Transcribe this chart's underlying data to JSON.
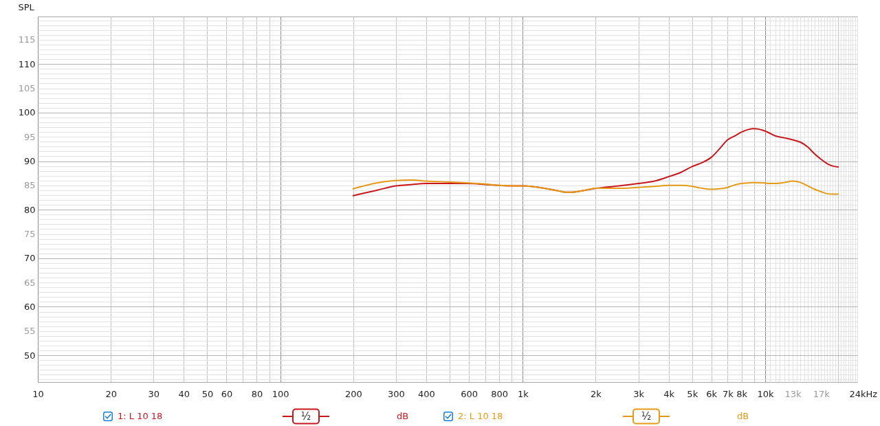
{
  "chart_data": {
    "type": "line",
    "ylabel": "SPL",
    "xlabel": "Hz",
    "log": "x",
    "grid": true,
    "legend": "bottom",
    "xlim": [
      10,
      24000
    ],
    "ylim": [
      44.5,
      119.8
    ],
    "xticks": [
      10,
      20,
      30,
      40,
      50,
      60,
      {
        "value": 70,
        "label": null
      },
      80,
      {
        "value": 90,
        "label": null
      },
      100,
      200,
      300,
      400,
      {
        "value": 500,
        "label": null
      },
      600,
      {
        "value": 700,
        "label": null
      },
      800,
      {
        "value": 900,
        "label": null
      },
      {
        "value": 1000,
        "label": "1k"
      },
      {
        "value": 2000,
        "label": "2k"
      },
      {
        "value": 3000,
        "label": "3k"
      },
      {
        "value": 4000,
        "label": "4k"
      },
      {
        "value": 5000,
        "label": "5k"
      },
      {
        "value": 6000,
        "label": "6k"
      },
      {
        "value": 7000,
        "label": "7k"
      },
      {
        "value": 8000,
        "label": "8k"
      },
      {
        "value": 9000,
        "label": null
      },
      {
        "value": 10000,
        "label": "10k"
      },
      {
        "value": 10500,
        "label": null
      },
      {
        "value": 11000,
        "label": null
      },
      {
        "value": 11500,
        "label": null
      },
      {
        "value": 12000,
        "label": null
      },
      {
        "value": 12500,
        "label": null
      },
      {
        "value": 13000,
        "label": "13k"
      },
      {
        "value": 13500,
        "label": null
      },
      {
        "value": 14000,
        "label": null
      },
      {
        "value": 14500,
        "label": null
      },
      {
        "value": 15000,
        "label": null
      },
      {
        "value": 15500,
        "label": null
      },
      {
        "value": 16000,
        "label": null
      },
      {
        "value": 16500,
        "label": null
      },
      {
        "value": 17000,
        "label": "17k"
      },
      {
        "value": 17500,
        "label": null
      },
      {
        "value": 18000,
        "label": null
      },
      {
        "value": 18500,
        "label": null
      },
      {
        "value": 19000,
        "label": null
      },
      {
        "value": 19500,
        "label": null
      },
      {
        "value": 20000,
        "label": null
      },
      {
        "value": 20500,
        "label": null
      },
      {
        "value": 21000,
        "label": null
      },
      {
        "value": 21500,
        "label": null
      },
      {
        "value": 22000,
        "label": null
      },
      {
        "value": 22500,
        "label": null
      },
      {
        "value": 23000,
        "label": null
      },
      {
        "value": 23500,
        "label": null
      },
      {
        "value": 24000,
        "label": "24k"
      }
    ],
    "yticks": [
      {
        "value": 45,
        "label": null
      },
      {
        "value": 46,
        "label": null
      },
      {
        "value": 47,
        "label": null
      },
      {
        "value": 48,
        "label": null
      },
      {
        "value": 49,
        "label": null
      },
      50,
      {
        "value": 51,
        "label": null
      },
      {
        "value": 52,
        "label": null
      },
      {
        "value": 53,
        "label": null
      },
      {
        "value": 54,
        "label": null
      },
      55,
      {
        "value": 56,
        "label": null
      },
      {
        "value": 57,
        "label": null
      },
      {
        "value": 58,
        "label": null
      },
      {
        "value": 59,
        "label": null
      },
      60,
      {
        "value": 61,
        "label": null
      },
      {
        "value": 62,
        "label": null
      },
      {
        "value": 63,
        "label": null
      },
      {
        "value": 64,
        "label": null
      },
      65,
      {
        "value": 66,
        "label": null
      },
      {
        "value": 67,
        "label": null
      },
      {
        "value": 68,
        "label": null
      },
      {
        "value": 69,
        "label": null
      },
      70,
      {
        "value": 71,
        "label": null
      },
      {
        "value": 72,
        "label": null
      },
      {
        "value": 73,
        "label": null
      },
      {
        "value": 74,
        "label": null
      },
      75,
      {
        "value": 76,
        "label": null
      },
      {
        "value": 77,
        "label": null
      },
      {
        "value": 78,
        "label": null
      },
      {
        "value": 79,
        "label": null
      },
      80,
      {
        "value": 81,
        "label": null
      },
      {
        "value": 82,
        "label": null
      },
      {
        "value": 83,
        "label": null
      },
      {
        "value": 84,
        "label": null
      },
      85,
      {
        "value": 86,
        "label": null
      },
      {
        "value": 87,
        "label": null
      },
      {
        "value": 88,
        "label": null
      },
      {
        "value": 89,
        "label": null
      },
      90,
      {
        "value": 91,
        "label": null
      },
      {
        "value": 92,
        "label": null
      },
      {
        "value": 93,
        "label": null
      },
      {
        "value": 94,
        "label": null
      },
      95,
      {
        "value": 96,
        "label": null
      },
      {
        "value": 97,
        "label": null
      },
      {
        "value": 98,
        "label": null
      },
      {
        "value": 99,
        "label": null
      },
      100,
      {
        "value": 101,
        "label": null
      },
      {
        "value": 102,
        "label": null
      },
      {
        "value": 103,
        "label": null
      },
      {
        "value": 104,
        "label": null
      },
      105,
      {
        "value": 106,
        "label": null
      },
      {
        "value": 107,
        "label": null
      },
      {
        "value": 108,
        "label": null
      },
      {
        "value": 109,
        "label": null
      },
      110,
      {
        "value": 111,
        "label": null
      },
      {
        "value": 112,
        "label": null
      },
      {
        "value": 113,
        "label": null
      },
      {
        "value": 114,
        "label": null
      },
      115,
      {
        "value": 116,
        "label": null
      },
      {
        "value": 117,
        "label": null
      },
      {
        "value": 118,
        "label": null
      },
      {
        "value": 119,
        "label": null
      }
    ],
    "x": [
      200,
      250,
      300,
      350,
      400,
      500,
      600,
      700,
      800,
      900,
      1000,
      1200,
      1400,
      1500,
      1600,
      1800,
      2000,
      2500,
      3000,
      3500,
      4000,
      4500,
      5000,
      5500,
      6000,
      6500,
      7000,
      7500,
      8000,
      8500,
      9000,
      10000,
      10500,
      11000,
      12000,
      13000,
      14000,
      15000,
      16000,
      17000,
      18000,
      19000,
      20000
    ],
    "series": [
      {
        "name": "1: L 10 18",
        "color": "#c8161d",
        "values": [
          82.9,
          84.0,
          84.9,
          85.2,
          85.4,
          85.4,
          85.4,
          85.2,
          85.0,
          84.9,
          84.9,
          84.5,
          83.9,
          83.6,
          83.6,
          84.0,
          84.4,
          84.9,
          85.4,
          85.9,
          86.8,
          87.7,
          88.9,
          89.7,
          90.8,
          92.6,
          94.4,
          95.2,
          96.0,
          96.5,
          96.7,
          96.2,
          95.7,
          95.2,
          94.8,
          94.4,
          93.9,
          92.9,
          91.5,
          90.4,
          89.5,
          89.0,
          88.8
        ]
      },
      {
        "name": "2: L 10 18",
        "color": "#e59a17",
        "values": [
          84.3,
          85.5,
          86.0,
          86.1,
          85.9,
          85.7,
          85.5,
          85.3,
          85.0,
          84.9,
          84.9,
          84.5,
          83.9,
          83.6,
          83.6,
          84.0,
          84.4,
          84.4,
          84.6,
          84.8,
          85.0,
          85.0,
          84.8,
          84.4,
          84.2,
          84.3,
          84.6,
          85.1,
          85.4,
          85.5,
          85.6,
          85.5,
          85.4,
          85.4,
          85.6,
          85.9,
          85.6,
          84.9,
          84.2,
          83.7,
          83.3,
          83.2,
          83.2
        ]
      }
    ],
    "annotations": [
      "½",
      "dB",
      "½",
      "dB"
    ]
  }
}
